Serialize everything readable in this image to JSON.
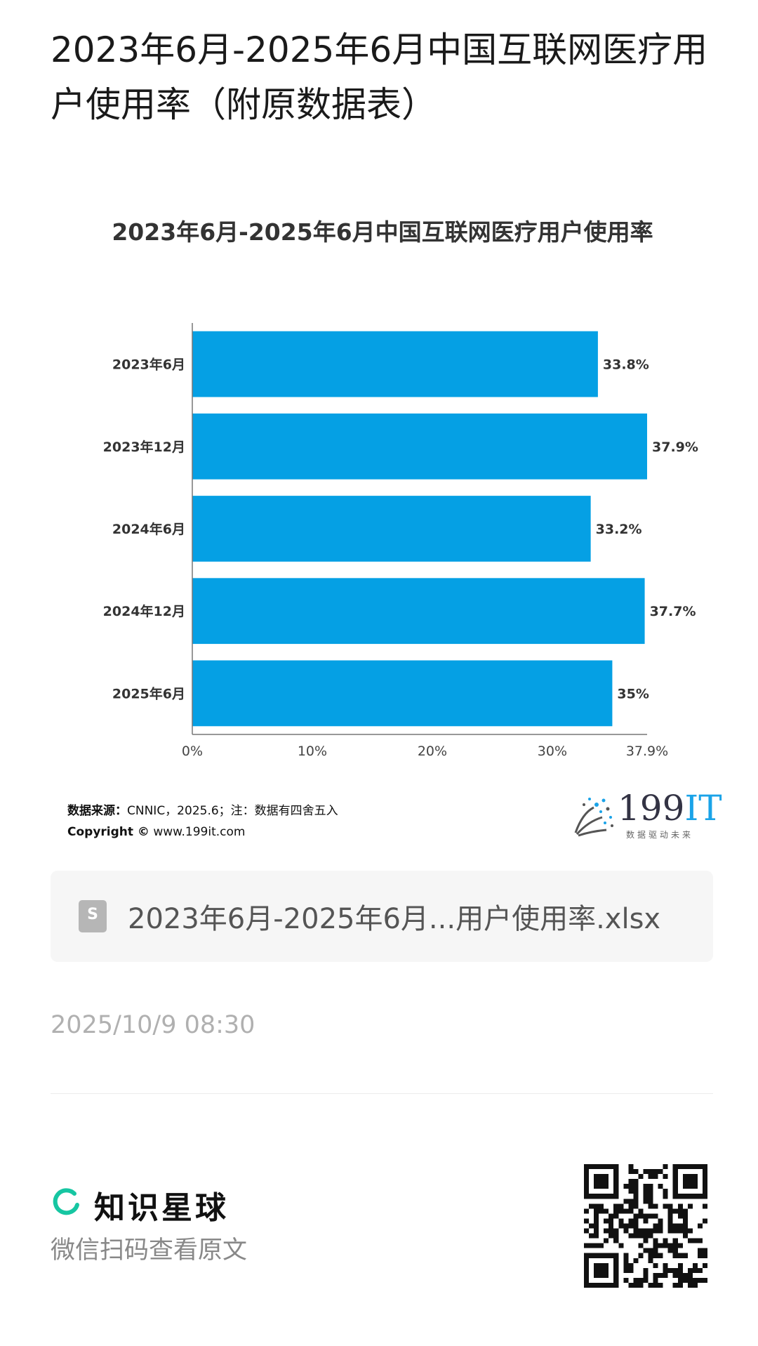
{
  "page": {
    "title": "2023年6月-2025年6月中国互联网医疗用户使用率（附原数据表）"
  },
  "chart_data": {
    "type": "bar",
    "orientation": "horizontal",
    "title": "2023年6月-2025年6月中国互联网医疗用户使用率",
    "categories": [
      "2023年6月",
      "2023年12月",
      "2024年6月",
      "2024年12月",
      "2025年6月"
    ],
    "values": [
      33.8,
      37.9,
      33.2,
      37.7,
      35
    ],
    "value_labels": [
      "33.8%",
      "37.9%",
      "33.2%",
      "37.7%",
      "35%"
    ],
    "xlim": [
      0,
      37.9
    ],
    "x_ticks": [
      0,
      10,
      20,
      30,
      37.9
    ],
    "x_tick_labels": [
      "0%",
      "10%",
      "20%",
      "30%",
      "37.9%"
    ],
    "bar_color": "#05a0e4",
    "grid": false
  },
  "source": {
    "label": "数据来源：",
    "text": "CNNIC，2025.6；注：数据有四舍五入",
    "copyright_label": "Copyright ©",
    "copyright_url": "www.199it.com"
  },
  "logo": {
    "name_prefix": "199",
    "name_suffix": "IT",
    "tagline": "数据驱动未来"
  },
  "attachment": {
    "icon": "spreadsheet-file-icon",
    "icon_letter": "S",
    "file_name": "2023年6月-2025年6月...用户使用率.xlsx"
  },
  "meta": {
    "timestamp": "2025/10/9 08:30"
  },
  "footer": {
    "brand_name": "知识星球",
    "brand_icon": "ring-logo-icon",
    "scan_text": "微信扫码查看原文",
    "qr_icon": "qr-code-icon"
  }
}
